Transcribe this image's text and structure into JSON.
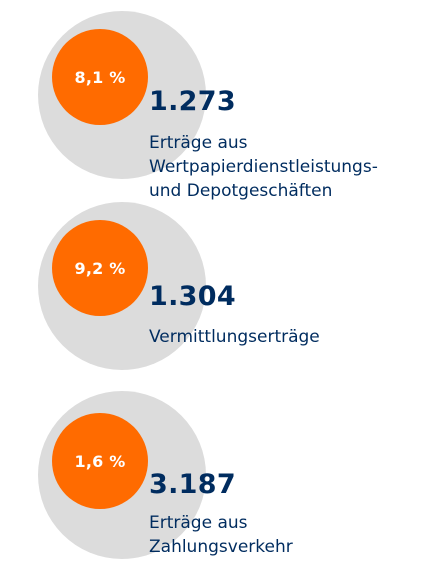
{
  "colors": {
    "outer_circle": "#dcdcdc",
    "inner_circle": "#ff6b00",
    "text_primary": "#002c5f",
    "percent_text": "#ffffff"
  },
  "items": [
    {
      "percent": "8,1 %",
      "value": "1.273",
      "label_lines": [
        "Erträge aus",
        "Wertpapierdienstleistungs-",
        "und Depotgeschäften"
      ]
    },
    {
      "percent": "9,2 %",
      "value": "1.304",
      "label_lines": [
        "Vermittlungserträge"
      ]
    },
    {
      "percent": "1,6 %",
      "value": "3.187",
      "label_lines": [
        "Erträge aus",
        "Zahlungsverkehr"
      ]
    }
  ],
  "chart_data": {
    "type": "bubble",
    "categories": [
      "Erträge aus Wertpapierdienstleistungs- und Depotgeschäften",
      "Vermittlungserträge",
      "Erträge aus Zahlungsverkehr"
    ],
    "values": [
      1273,
      1304,
      3187
    ],
    "percentages": [
      8.1,
      9.2,
      1.6
    ]
  }
}
